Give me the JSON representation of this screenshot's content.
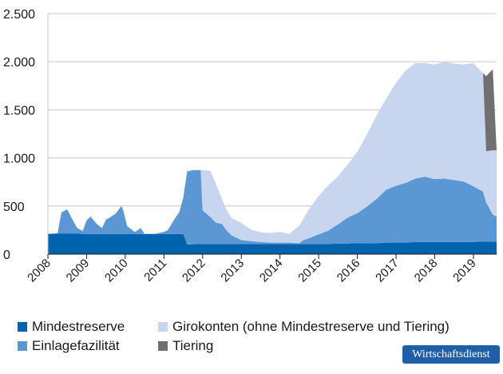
{
  "chart_data": {
    "type": "area",
    "stacked": true,
    "title": "",
    "xlabel": "",
    "ylabel": "",
    "ylim": [
      0,
      2500
    ],
    "xlim": [
      2008,
      2019.6
    ],
    "yticks": [
      0,
      500,
      1000,
      1500,
      2000,
      2500
    ],
    "ytick_labels": [
      "0",
      "500",
      "1.000",
      "1.500",
      "2.000",
      "2.500"
    ],
    "xticks": [
      2008,
      2009,
      2010,
      2011,
      2012,
      2013,
      2014,
      2015,
      2016,
      2017,
      2018,
      2019
    ],
    "xtick_labels": [
      "2008",
      "2009",
      "2010",
      "2011",
      "2012",
      "2013",
      "2014",
      "2015",
      "2016",
      "2017",
      "2018",
      "2019"
    ],
    "grid": "horizontal",
    "legend_position": "bottom",
    "x": [
      2008.0,
      2008.25,
      2008.35,
      2008.5,
      2008.6,
      2008.75,
      2008.9,
      2009.0,
      2009.1,
      2009.25,
      2009.4,
      2009.5,
      2009.6,
      2009.75,
      2009.9,
      2009.95,
      2010.05,
      2010.25,
      2010.4,
      2010.5,
      2010.75,
      2011.0,
      2011.1,
      2011.25,
      2011.4,
      2011.5,
      2011.6,
      2011.75,
      2011.95,
      2012.0,
      2012.2,
      2012.35,
      2012.5,
      2012.6,
      2012.75,
      2013.0,
      2013.25,
      2013.5,
      2013.75,
      2014.0,
      2014.25,
      2014.4,
      2014.5,
      2014.6,
      2014.75,
      2015.0,
      2015.25,
      2015.5,
      2015.75,
      2016.0,
      2016.25,
      2016.5,
      2016.75,
      2017.0,
      2017.25,
      2017.5,
      2017.75,
      2018.0,
      2018.25,
      2018.5,
      2018.75,
      2019.0,
      2019.25,
      2019.33,
      2019.5,
      2019.6
    ],
    "series": [
      {
        "name": "Mindestreserve",
        "color": "#0063b0",
        "values": [
          210,
          215,
          215,
          215,
          215,
          215,
          210,
          210,
          210,
          210,
          210,
          210,
          210,
          210,
          210,
          210,
          210,
          210,
          210,
          210,
          210,
          210,
          210,
          210,
          210,
          210,
          100,
          103,
          105,
          105,
          105,
          105,
          105,
          105,
          105,
          105,
          105,
          105,
          105,
          105,
          105,
          105,
          105,
          105,
          105,
          105,
          105,
          110,
          110,
          115,
          115,
          115,
          120,
          120,
          120,
          125,
          125,
          125,
          125,
          125,
          125,
          125,
          130,
          130,
          130,
          130
        ]
      },
      {
        "name": "Einlagefazilität",
        "color": "#5b98d3",
        "values": [
          0,
          0,
          220,
          250,
          170,
          60,
          30,
          140,
          180,
          110,
          60,
          150,
          170,
          210,
          290,
          240,
          80,
          20,
          60,
          0,
          0,
          20,
          40,
          140,
          230,
          380,
          760,
          770,
          770,
          350,
          280,
          220,
          210,
          150,
          90,
          40,
          30,
          20,
          15,
          15,
          15,
          10,
          10,
          40,
          60,
          100,
          140,
          200,
          270,
          310,
          380,
          460,
          550,
          590,
          620,
          660,
          680,
          655,
          660,
          645,
          630,
          580,
          520,
          410,
          280,
          260
        ]
      },
      {
        "name": "Girokonten (ohne Mindestreserve und Tiering)",
        "color": "#c7d5ee",
        "values": [
          0,
          0,
          0,
          0,
          0,
          0,
          0,
          0,
          0,
          0,
          0,
          0,
          0,
          0,
          0,
          0,
          0,
          0,
          0,
          0,
          0,
          0,
          0,
          0,
          0,
          0,
          0,
          0,
          0,
          420,
          480,
          400,
          260,
          220,
          180,
          180,
          120,
          100,
          100,
          110,
          90,
          150,
          180,
          220,
          300,
          400,
          470,
          500,
          550,
          640,
          750,
          870,
          950,
          1070,
          1170,
          1200,
          1180,
          1190,
          1215,
          1210,
          1215,
          1280,
          1230,
          530,
          670,
          690
        ]
      },
      {
        "name": "Tiering",
        "color": "#707070",
        "values": [
          0,
          0,
          0,
          0,
          0,
          0,
          0,
          0,
          0,
          0,
          0,
          0,
          0,
          0,
          0,
          0,
          0,
          0,
          0,
          0,
          0,
          0,
          0,
          0,
          0,
          0,
          0,
          0,
          0,
          0,
          0,
          0,
          0,
          0,
          0,
          0,
          0,
          0,
          0,
          0,
          0,
          0,
          0,
          0,
          0,
          0,
          0,
          0,
          0,
          0,
          0,
          0,
          0,
          0,
          0,
          0,
          0,
          0,
          0,
          0,
          0,
          0,
          0,
          780,
          840,
          0
        ]
      }
    ]
  },
  "legend": [
    {
      "label": "Mindestreserve",
      "color": "#0063b0"
    },
    {
      "label": "Girokonten (ohne Mindestreserve und Tiering)",
      "color": "#c7d5ee"
    },
    {
      "label": "Einlagefazilität",
      "color": "#5b98d3"
    },
    {
      "label": "Tiering",
      "color": "#707070"
    }
  ],
  "source_badge": "Wirtschaftsdienst"
}
